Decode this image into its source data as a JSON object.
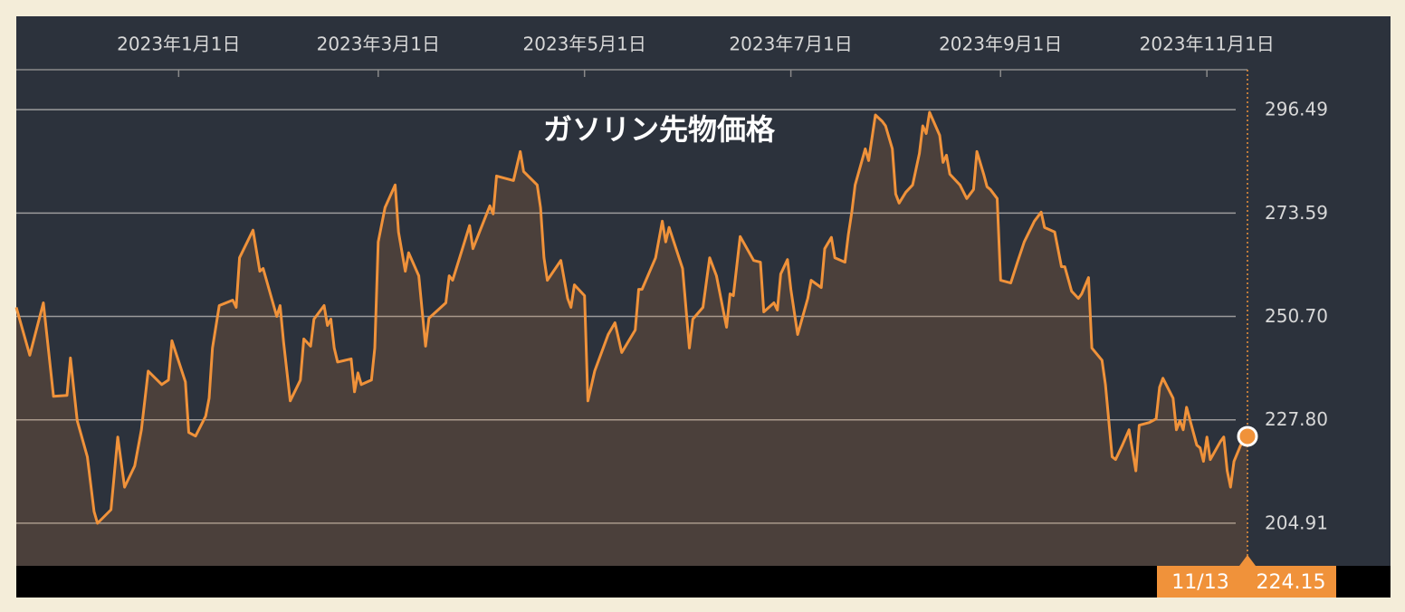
{
  "chart_data": {
    "type": "line",
    "title": "ガソリン先物価格",
    "color": "#f0923a",
    "grid": true,
    "ylim": [
      195.47,
      305.33
    ],
    "yticks": [
      204.91,
      {
        "value": 227.8,
        "label": "227.80"
      },
      {
        "value": 250.7,
        "label": "250.70"
      },
      273.59,
      296.49
    ],
    "xlim": [
      "2022-11-14",
      "2023-11-13"
    ],
    "xticks": [
      {
        "value": "2023-01-01",
        "label": "2023年1月1日"
      },
      {
        "value": "2023-03-01",
        "label": "2023年3月1日"
      },
      {
        "value": "2023-05-01",
        "label": "2023年5月1日"
      },
      {
        "value": "2023-07-01",
        "label": "2023年7月1日"
      },
      {
        "value": "2023-09-01",
        "label": "2023年9月1日"
      },
      {
        "value": "2023-11-01",
        "label": "2023年11月1日"
      }
    ],
    "cursor_label": "11/13",
    "x": [
      "2022-11-14",
      "2022-11-18",
      "2022-11-22",
      "2022-11-25",
      "2022-11-29",
      "2022-11-30",
      "2022-12-02",
      "2022-12-05",
      "2022-12-07",
      "2022-12-08",
      "2022-12-12",
      "2022-12-14",
      "2022-12-16",
      "2022-12-19",
      "2022-12-21",
      "2022-12-23",
      "2022-12-27",
      "2022-12-29",
      "2022-12-30",
      "2023-01-03",
      "2023-01-04",
      "2023-01-06",
      "2023-01-09",
      "2023-01-10",
      "2023-01-11",
      "2023-01-13",
      "2023-01-17",
      "2023-01-18",
      "2023-01-19",
      "2023-01-23",
      "2023-01-25",
      "2023-01-26",
      "2023-01-30",
      "2023-01-31",
      "2023-02-01",
      "2023-02-03",
      "2023-02-06",
      "2023-02-07",
      "2023-02-09",
      "2023-02-10",
      "2023-02-13",
      "2023-02-14",
      "2023-02-15",
      "2023-02-16",
      "2023-02-17",
      "2023-02-21",
      "2023-02-22",
      "2023-02-23",
      "2023-02-24",
      "2023-02-27",
      "2023-02-28",
      "2023-03-01",
      "2023-03-03",
      "2023-03-06",
      "2023-03-07",
      "2023-03-09",
      "2023-03-10",
      "2023-03-13",
      "2023-03-15",
      "2023-03-16",
      "2023-03-21",
      "2023-03-22",
      "2023-03-23",
      "2023-03-28",
      "2023-03-29",
      "2023-04-03",
      "2023-04-04",
      "2023-04-05",
      "2023-04-10",
      "2023-04-12",
      "2023-04-13",
      "2023-04-17",
      "2023-04-18",
      "2023-04-19",
      "2023-04-20",
      "2023-04-24",
      "2023-04-26",
      "2023-04-27",
      "2023-04-28",
      "2023-05-01",
      "2023-05-02",
      "2023-05-04",
      "2023-05-08",
      "2023-05-10",
      "2023-05-12",
      "2023-05-16",
      "2023-05-17",
      "2023-05-18",
      "2023-05-22",
      "2023-05-24",
      "2023-05-25",
      "2023-05-26",
      "2023-05-30",
      "2023-06-01",
      "2023-06-02",
      "2023-06-05",
      "2023-06-07",
      "2023-06-09",
      "2023-06-12",
      "2023-06-13",
      "2023-06-14",
      "2023-06-16",
      "2023-06-20",
      "2023-06-22",
      "2023-06-23",
      "2023-06-26",
      "2023-06-27",
      "2023-06-28",
      "2023-06-30",
      "2023-07-01",
      "2023-07-03",
      "2023-07-06",
      "2023-07-07",
      "2023-07-10",
      "2023-07-11",
      "2023-07-13",
      "2023-07-14",
      "2023-07-17",
      "2023-07-18",
      "2023-07-19",
      "2023-07-20",
      "2023-07-23",
      "2023-07-24",
      "2023-07-26",
      "2023-07-28",
      "2023-07-29",
      "2023-07-31",
      "2023-08-01",
      "2023-08-02",
      "2023-08-04",
      "2023-08-06",
      "2023-08-08",
      "2023-08-09",
      "2023-08-10",
      "2023-08-11",
      "2023-08-14",
      "2023-08-15",
      "2023-08-16",
      "2023-08-17",
      "2023-08-20",
      "2023-08-22",
      "2023-08-24",
      "2023-08-25",
      "2023-08-27",
      "2023-08-28",
      "2023-08-29",
      "2023-08-31",
      "2023-09-01",
      "2023-09-04",
      "2023-09-06",
      "2023-09-08",
      "2023-09-11",
      "2023-09-13",
      "2023-09-14",
      "2023-09-17",
      "2023-09-19",
      "2023-09-20",
      "2023-09-22",
      "2023-09-24",
      "2023-09-25",
      "2023-09-27",
      "2023-09-28",
      "2023-10-01",
      "2023-10-02",
      "2023-10-04",
      "2023-10-05",
      "2023-10-07",
      "2023-10-09",
      "2023-10-11",
      "2023-10-12",
      "2023-10-15",
      "2023-10-17",
      "2023-10-18",
      "2023-10-19",
      "2023-10-22",
      "2023-10-23",
      "2023-10-24",
      "2023-10-25",
      "2023-10-26",
      "2023-10-29",
      "2023-10-30",
      "2023-10-31",
      "2023-11-01",
      "2023-11-02",
      "2023-11-05",
      "2023-11-06",
      "2023-11-07",
      "2023-11-08",
      "2023-11-09",
      "2023-11-11",
      "2023-11-13"
    ],
    "values": [
      252.7,
      242.1,
      253.7,
      233.0,
      233.2,
      241.5,
      227.6,
      219.6,
      207.5,
      204.9,
      207.9,
      224.0,
      212.9,
      217.6,
      225.6,
      238.6,
      235.6,
      236.6,
      245.3,
      236.2,
      225.0,
      224.2,
      228.6,
      232.6,
      243.7,
      253.1,
      254.3,
      252.7,
      263.7,
      269.8,
      260.7,
      261.3,
      250.7,
      253.1,
      245.1,
      232.0,
      236.6,
      245.7,
      244.1,
      250.1,
      253.1,
      248.7,
      250.1,
      243.7,
      240.6,
      241.3,
      234.0,
      238.2,
      235.6,
      236.6,
      243.7,
      267.2,
      274.8,
      279.8,
      269.4,
      260.7,
      264.8,
      259.7,
      244.1,
      250.3,
      253.7,
      259.7,
      258.7,
      270.8,
      265.7,
      275.2,
      273.4,
      281.8,
      280.8,
      287.2,
      282.8,
      279.8,
      274.8,
      263.7,
      258.7,
      263.1,
      254.7,
      252.7,
      257.7,
      255.3,
      232.0,
      238.6,
      246.7,
      249.3,
      242.7,
      247.7,
      256.7,
      256.7,
      263.7,
      271.8,
      267.2,
      270.4,
      261.3,
      243.7,
      250.1,
      252.7,
      263.7,
      259.7,
      248.3,
      255.7,
      255.3,
      268.4,
      263.1,
      262.7,
      251.7,
      253.7,
      252.1,
      260.1,
      263.3,
      256.7,
      246.7,
      254.7,
      258.7,
      257.1,
      265.7,
      268.2,
      263.7,
      262.7,
      268.8,
      273.8,
      279.8,
      287.8,
      285.2,
      295.3,
      293.9,
      292.9,
      287.8,
      277.8,
      275.8,
      278.2,
      279.8,
      286.8,
      292.9,
      291.2,
      295.9,
      290.8,
      284.8,
      286.4,
      282.2,
      279.8,
      276.8,
      278.8,
      287.2,
      282.2,
      279.4,
      278.8,
      276.8,
      258.7,
      258.1,
      262.7,
      267.2,
      271.8,
      273.8,
      270.4,
      269.4,
      261.7,
      261.7,
      256.3,
      254.7,
      255.7,
      259.3,
      243.7,
      241.0,
      235.6,
      219.6,
      219.0,
      222.2,
      225.6,
      216.5,
      226.6,
      227.2,
      228.0,
      235.0,
      237.0,
      232.6,
      225.6,
      227.6,
      225.6,
      230.6,
      222.2,
      221.6,
      218.6,
      224.0,
      219.0,
      223.0,
      224.0,
      216.5,
      212.9,
      218.6,
      222.2,
      224.15
    ]
  }
}
